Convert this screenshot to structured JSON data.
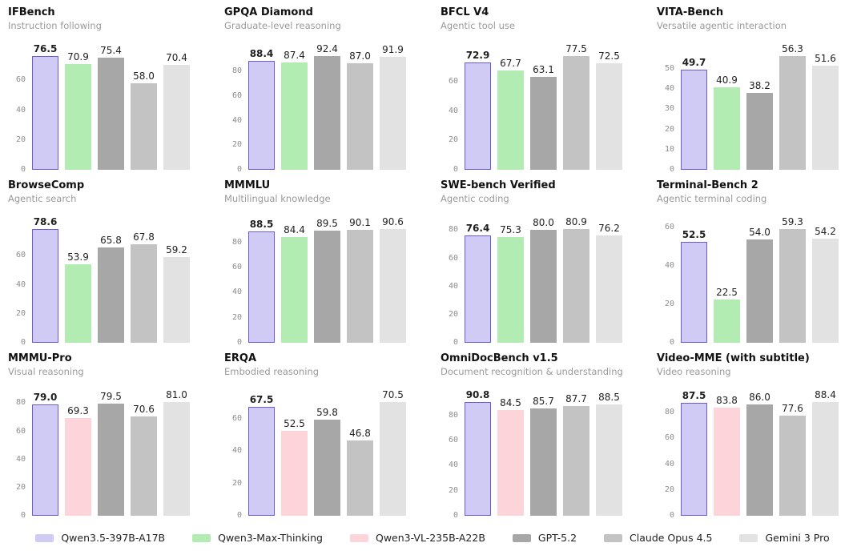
{
  "colors": {
    "Qwen3.5-397B-A17B": {
      "fill": "#cfcbf5",
      "border": "#6b5bd2"
    },
    "Qwen3-Max-Thinking": {
      "fill": "#b2ecb2",
      "border": "#b2ecb2"
    },
    "Qwen3-VL-235B-A22B": {
      "fill": "#fdd4da",
      "border": "#fdd4da"
    },
    "GPT-5.2": {
      "fill": "#a7a7a7",
      "border": "#a7a7a7"
    },
    "Claude Opus 4.5": {
      "fill": "#c3c3c3",
      "border": "#c3c3c3"
    },
    "Gemini 3 Pro": {
      "fill": "#e2e2e2",
      "border": "#e2e2e2"
    }
  },
  "legend": {
    "items": [
      {
        "label": "Qwen3.5-397B-A17B"
      },
      {
        "label": "Qwen3-Max-Thinking"
      },
      {
        "label": "Qwen3-VL-235B-A22B"
      },
      {
        "label": "GPT-5.2"
      },
      {
        "label": "Claude Opus 4.5"
      },
      {
        "label": "Gemini 3 Pro"
      }
    ]
  },
  "chart_data": [
    {
      "type": "bar",
      "title": "IFBench",
      "subtitle": "Instruction following",
      "categories": [
        "Qwen3.5-397B-A17B",
        "Qwen3-Max-Thinking",
        "GPT-5.2",
        "Claude Opus 4.5",
        "Gemini 3 Pro"
      ],
      "values": [
        76.5,
        70.9,
        75.4,
        58.0,
        70.4
      ],
      "yticks": [
        0,
        20,
        40,
        60
      ],
      "ylim": [
        0,
        78
      ],
      "highlight_index": 0,
      "grid": false,
      "legend_position": "figure-bottom"
    },
    {
      "type": "bar",
      "title": "GPQA Diamond",
      "subtitle": "Graduate-level reasoning",
      "categories": [
        "Qwen3.5-397B-A17B",
        "Qwen3-Max-Thinking",
        "GPT-5.2",
        "Claude Opus 4.5",
        "Gemini 3 Pro"
      ],
      "values": [
        88.4,
        87.4,
        92.4,
        87.0,
        91.9
      ],
      "yticks": [
        0,
        20,
        40,
        60,
        80
      ],
      "ylim": [
        0,
        94.5
      ],
      "highlight_index": 0,
      "grid": false,
      "legend_position": "figure-bottom"
    },
    {
      "type": "bar",
      "title": "BFCL V4",
      "subtitle": "Agentic tool use",
      "categories": [
        "Qwen3.5-397B-A17B",
        "Qwen3-Max-Thinking",
        "GPT-5.2",
        "Claude Opus 4.5",
        "Gemini 3 Pro"
      ],
      "values": [
        72.9,
        67.7,
        63.1,
        77.5,
        72.5
      ],
      "yticks": [
        0,
        20,
        40,
        60
      ],
      "ylim": [
        0,
        79
      ],
      "highlight_index": 0,
      "grid": false,
      "legend_position": "figure-bottom"
    },
    {
      "type": "bar",
      "title": "VITA-Bench",
      "subtitle": "Versatile agentic interaction",
      "categories": [
        "Qwen3.5-397B-A17B",
        "Qwen3-Max-Thinking",
        "GPT-5.2",
        "Claude Opus 4.5",
        "Gemini 3 Pro"
      ],
      "values": [
        49.7,
        40.9,
        38.2,
        56.3,
        51.6
      ],
      "yticks": [
        0,
        10,
        20,
        30,
        40,
        50
      ],
      "ylim": [
        0,
        57.5
      ],
      "highlight_index": 0,
      "grid": false,
      "legend_position": "figure-bottom"
    },
    {
      "type": "bar",
      "title": "BrowseComp",
      "subtitle": "Agentic search",
      "categories": [
        "Qwen3.5-397B-A17B",
        "Qwen3-Max-Thinking",
        "GPT-5.2",
        "Claude Opus 4.5",
        "Gemini 3 Pro"
      ],
      "values": [
        78.6,
        53.9,
        65.8,
        67.8,
        59.2
      ],
      "yticks": [
        0,
        20,
        40,
        60
      ],
      "ylim": [
        0,
        80
      ],
      "highlight_index": 0,
      "grid": false,
      "legend_position": "figure-bottom"
    },
    {
      "type": "bar",
      "title": "MMMLU",
      "subtitle": "Multilingual knowledge",
      "categories": [
        "Qwen3.5-397B-A17B",
        "Qwen3-Max-Thinking",
        "GPT-5.2",
        "Claude Opus 4.5",
        "Gemini 3 Pro"
      ],
      "values": [
        88.5,
        84.4,
        89.5,
        90.1,
        90.6
      ],
      "yticks": [
        0,
        20,
        40,
        60,
        80
      ],
      "ylim": [
        0,
        92.5
      ],
      "highlight_index": 0,
      "grid": false,
      "legend_position": "figure-bottom"
    },
    {
      "type": "bar",
      "title": "SWE-bench Verified",
      "subtitle": "Agentic coding",
      "categories": [
        "Qwen3.5-397B-A17B",
        "Qwen3-Max-Thinking",
        "GPT-5.2",
        "Claude Opus 4.5",
        "Gemini 3 Pro"
      ],
      "values": [
        76.4,
        75.3,
        80.0,
        80.9,
        76.2
      ],
      "yticks": [
        0,
        20,
        40,
        60,
        80
      ],
      "ylim": [
        0,
        82.5
      ],
      "highlight_index": 0,
      "grid": false,
      "legend_position": "figure-bottom"
    },
    {
      "type": "bar",
      "title": "Terminal-Bench 2",
      "subtitle": "Agentic terminal coding",
      "categories": [
        "Qwen3.5-397B-A17B",
        "Qwen3-Max-Thinking",
        "GPT-5.2",
        "Claude Opus 4.5",
        "Gemini 3 Pro"
      ],
      "values": [
        52.5,
        22.5,
        54.0,
        59.3,
        54.2
      ],
      "yticks": [
        0,
        20,
        40,
        60
      ],
      "ylim": [
        0,
        60.5
      ],
      "highlight_index": 0,
      "grid": false,
      "legend_position": "figure-bottom"
    },
    {
      "type": "bar",
      "title": "MMMU-Pro",
      "subtitle": "Visual reasoning",
      "categories": [
        "Qwen3.5-397B-A17B",
        "Qwen3-VL-235B-A22B",
        "GPT-5.2",
        "Claude Opus 4.5",
        "Gemini 3 Pro"
      ],
      "values": [
        79.0,
        69.3,
        79.5,
        70.6,
        81.0
      ],
      "yticks": [
        0,
        20,
        40,
        60,
        80
      ],
      "ylim": [
        0,
        82.5
      ],
      "highlight_index": 0,
      "grid": false,
      "legend_position": "figure-bottom"
    },
    {
      "type": "bar",
      "title": "ERQA",
      "subtitle": "Embodied reasoning",
      "categories": [
        "Qwen3.5-397B-A17B",
        "Qwen3-VL-235B-A22B",
        "GPT-5.2",
        "Claude Opus 4.5",
        "Gemini 3 Pro"
      ],
      "values": [
        67.5,
        52.5,
        59.8,
        46.8,
        70.5
      ],
      "yticks": [
        0,
        20,
        40,
        60
      ],
      "ylim": [
        0,
        72
      ],
      "highlight_index": 0,
      "grid": false,
      "legend_position": "figure-bottom"
    },
    {
      "type": "bar",
      "title": "OmniDocBench v1.5",
      "subtitle": "Document recognition & understanding",
      "categories": [
        "Qwen3.5-397B-A17B",
        "Qwen3-VL-235B-A22B",
        "GPT-5.2",
        "Claude Opus 4.5",
        "Gemini 3 Pro"
      ],
      "values": [
        90.8,
        84.5,
        85.7,
        87.7,
        88.5
      ],
      "yticks": [
        0,
        20,
        40,
        60,
        80
      ],
      "ylim": [
        0,
        92.5
      ],
      "highlight_index": 0,
      "grid": false,
      "legend_position": "figure-bottom"
    },
    {
      "type": "bar",
      "title": "Video-MME (with subtitle)",
      "subtitle": "Video reasoning",
      "categories": [
        "Qwen3.5-397B-A17B",
        "Qwen3-VL-235B-A22B",
        "GPT-5.2",
        "Claude Opus 4.5",
        "Gemini 3 Pro"
      ],
      "values": [
        87.5,
        83.8,
        86.0,
        77.6,
        88.4
      ],
      "yticks": [
        0,
        20,
        40,
        60,
        80
      ],
      "ylim": [
        0,
        90
      ],
      "highlight_index": 0,
      "grid": false,
      "legend_position": "figure-bottom"
    }
  ]
}
